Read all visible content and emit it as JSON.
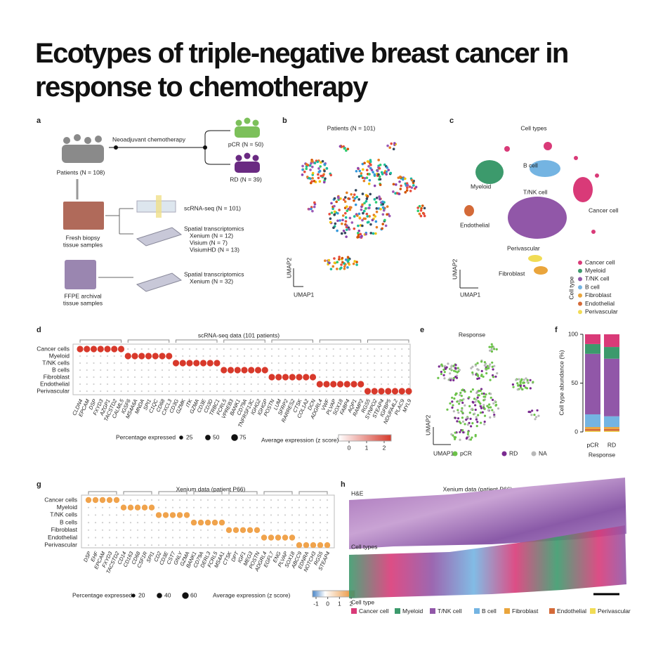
{
  "title": "Ecotypes of triple-negative breast cancer in response to chemotherapy",
  "panel_a": {
    "label": "a",
    "arrow": "Neoadjuvant chemotherapy",
    "patients": "Patients (N = 108)",
    "pcr": "pCR (N = 50)",
    "rd": "RD (N = 39)",
    "fresh": [
      "Fresh biopsy",
      "tissue samples"
    ],
    "scrna": "scRNA-seq (N = 101)",
    "spatial1": [
      "Spatial transcriptomics",
      "Xenium (N = 12)",
      "Visium (N = 7)",
      "VisiumHD (N = 13)"
    ],
    "ffpe": [
      "FFPE archival",
      "tissue samples"
    ],
    "spatial2": [
      "Spatial transcriptomics",
      "Xenium (N = 32)"
    ]
  },
  "panel_b": {
    "label": "b",
    "title": "Patients (N = 101)",
    "y_label": "UMAP2",
    "x_label": "UMAP1"
  },
  "panel_c": {
    "label": "c",
    "title": "Cell types",
    "cluster_labels": [
      "B cell",
      "Myeloid",
      "T/NK cell",
      "Cancer cell",
      "Endothelial",
      "Perivascular",
      "Fibroblast"
    ],
    "legend_title": "Cell type",
    "y_label": "UMAP2",
    "x_label": "UMAP1"
  },
  "panel_d": {
    "label": "d",
    "title": "scRNA-seq data (101 patients)",
    "rows": [
      "Cancer cells",
      "Myeloid",
      "T/NK cells",
      "B cells",
      "Fibroblast",
      "Endothelial",
      "Perivascular"
    ],
    "groups": [
      [
        "CLDN4",
        "EPCAM",
        "DSP",
        "FXYD3",
        "AZGP1",
        "TACSTD2",
        "CALML5"
      ],
      [
        "IGSF6",
        "MS4A6A",
        "MNDA",
        "SPI1",
        "C1QC",
        "CD68",
        "CXCL3"
      ],
      [
        "CD3G",
        "GZMK",
        "ITK",
        "GZMA",
        "CD3E",
        "CD3D",
        "TRBC1"
      ],
      [
        "FCRL5",
        "VPREB3",
        "BANK1",
        "CD79A",
        "TNFRSF13C",
        "IGHG2",
        "IGHGP"
      ],
      [
        "POSTN",
        "LUM",
        "SFRP2",
        "RARRES2",
        "CTSK",
        "COL1A2",
        "DCN"
      ],
      [
        "ADGRL4",
        "VWF",
        "PLVAP",
        "SOX18",
        "FABP4",
        "AQP1",
        "RAMP2"
      ],
      [
        "RGS5",
        "SYNPO2",
        "STEAP4",
        "IGFBP5",
        "NDUFA4L2",
        "PLAC9",
        "MYL9"
      ]
    ],
    "size_legend": {
      "title": "Percentage expressed",
      "values": [
        25,
        50,
        75
      ]
    },
    "color_legend": {
      "title": "Average expression (z score)",
      "lim": [
        -0.6,
        2.4
      ],
      "ticks": [
        0,
        1,
        2
      ]
    }
  },
  "panel_e": {
    "label": "e",
    "title": "Response",
    "legend": [
      {
        "name": "pCR",
        "color": "#6cc24a"
      },
      {
        "name": "RD",
        "color": "#7a2a90"
      },
      {
        "name": "NA",
        "color": "#b8b8b8"
      }
    ],
    "y_label": "UMAP2",
    "x_label": "UMAP1"
  },
  "chart_data": {
    "type": "bar",
    "stacked": true,
    "panel_label": "f",
    "categories": [
      "pCR",
      "RD"
    ],
    "series": [
      {
        "name": "Cancer cell",
        "color": "#d93a78",
        "values": [
          10,
          13
        ]
      },
      {
        "name": "Myeloid",
        "color": "#3c9a6c",
        "values": [
          10,
          12
        ]
      },
      {
        "name": "T/NK cell",
        "color": "#9157a8",
        "values": [
          62,
          59
        ]
      },
      {
        "name": "B cell",
        "color": "#74b4e2",
        "values": [
          13,
          11
        ]
      },
      {
        "name": "Fibroblast",
        "color": "#eaa53c",
        "values": [
          2,
          2
        ]
      },
      {
        "name": "Endothelial",
        "color": "#d46a38",
        "values": [
          2,
          2
        ]
      },
      {
        "name": "Perivascular",
        "color": "#f1dc55",
        "values": [
          1,
          1
        ]
      }
    ],
    "ylim": [
      0,
      100
    ],
    "yticks": [
      0,
      50,
      100
    ],
    "y_label": "Cell type abundance (%)",
    "x_label": "Response"
  },
  "panel_g": {
    "label": "g",
    "title": "Xenium data (patient P66)",
    "rows": [
      "Cancer cells",
      "Myeloid",
      "T/NK cells",
      "B cells",
      "Fibroblast",
      "Endothelial",
      "Perivascular"
    ],
    "groups": [
      [
        "DSP",
        "EHF",
        "EPCAM",
        "FXYD3",
        "TACSTD2"
      ],
      [
        "CD14",
        "CD163",
        "CD68",
        "CSF1R",
        "SPI1"
      ],
      [
        "CD2",
        "CD3E",
        "CST7",
        "GNLY",
        "GZMA"
      ],
      [
        "BANK1",
        "CD79A",
        "DERL3",
        "FCRL5",
        "MS4A1"
      ],
      [
        "CTSK",
        "DPT",
        "IGF1",
        "MEG3",
        "POSTN"
      ],
      [
        "ADGRL4",
        "EGFL7",
        "ENG",
        "PLVAP",
        "SOX18"
      ],
      [
        "ABCC9",
        "EDNRA",
        "NOTCH3",
        "RGS5",
        "STEAP4"
      ]
    ],
    "size_legend": {
      "title": "Percentage expressed",
      "values": [
        20,
        40,
        60
      ]
    },
    "color_legend": {
      "title": "Average expression (z score)",
      "lim": [
        -1.3,
        2.3
      ],
      "ticks": [
        -1,
        0,
        1,
        2
      ]
    }
  },
  "panel_h": {
    "label": "h",
    "title": "Xenium data (patient P66)",
    "he": "H&E",
    "cell_types": "Cell types",
    "legend_title": "Cell type"
  }
}
